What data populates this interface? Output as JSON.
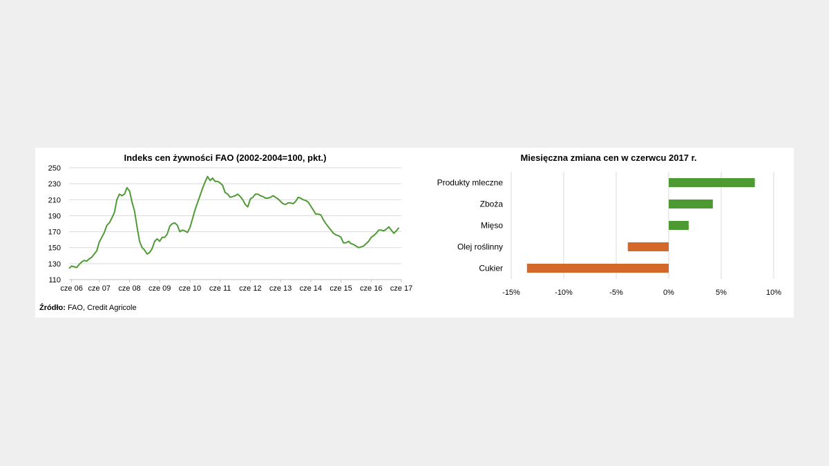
{
  "source": {
    "label": "Źródło:",
    "text": " FAO, Credit Agricole"
  },
  "chart_data": [
    {
      "type": "line",
      "title": "Indeks cen żywności FAO (2002-2004=100, pkt.)",
      "ylim": [
        110,
        250
      ],
      "yticks": [
        110,
        130,
        150,
        170,
        190,
        210,
        230,
        250
      ],
      "xlim": [
        0,
        132
      ],
      "grid": true,
      "xtick_labels": [
        {
          "x": 1,
          "label": "cze 06"
        },
        {
          "x": 12,
          "label": "cze 07"
        },
        {
          "x": 24,
          "label": "cze 08"
        },
        {
          "x": 36,
          "label": "cze 09"
        },
        {
          "x": 48,
          "label": "cze 10"
        },
        {
          "x": 60,
          "label": "cze 11"
        },
        {
          "x": 72,
          "label": "cze 12"
        },
        {
          "x": 84,
          "label": "cze 13"
        },
        {
          "x": 96,
          "label": "cze 14"
        },
        {
          "x": 108,
          "label": "cze 15"
        },
        {
          "x": 120,
          "label": "cze 16"
        },
        {
          "x": 132,
          "label": "cze 17"
        }
      ],
      "color": "#4e9a32",
      "values": [
        124,
        127,
        126,
        125,
        129,
        132,
        134,
        133,
        136,
        138,
        142,
        146,
        157,
        163,
        169,
        178,
        181,
        187,
        194,
        210,
        217,
        215,
        217,
        225,
        221,
        207,
        196,
        176,
        158,
        150,
        147,
        142,
        144,
        149,
        158,
        161,
        158,
        163,
        163,
        167,
        177,
        180,
        181,
        178,
        170,
        172,
        171,
        169,
        175,
        186,
        197,
        206,
        215,
        224,
        232,
        239,
        234,
        237,
        233,
        233,
        231,
        228,
        219,
        217,
        213,
        214,
        215,
        217,
        214,
        210,
        204,
        201,
        211,
        213,
        217,
        217,
        215,
        214,
        212,
        212,
        213,
        215,
        213,
        211,
        208,
        205,
        204,
        206,
        206,
        205,
        208,
        213,
        212,
        210,
        209,
        207,
        202,
        197,
        192,
        192,
        191,
        185,
        180,
        176,
        172,
        168,
        166,
        165,
        163,
        156,
        156,
        158,
        155,
        154,
        152,
        150,
        151,
        152,
        155,
        158,
        163,
        165,
        168,
        172,
        172,
        171,
        173,
        176,
        172,
        168,
        171,
        175
      ]
    },
    {
      "type": "bar",
      "orientation": "horizontal",
      "title": "Miesięczna zmiana cen w czerwcu 2017 r.",
      "categories": [
        "Produkty mleczne",
        "Zboża",
        "Mięso",
        "Olej roślinny",
        "Cukier"
      ],
      "values": [
        8.2,
        4.2,
        1.9,
        -3.9,
        -13.5
      ],
      "unit": "%",
      "xlim": [
        -15,
        10
      ],
      "xticks": [
        -15,
        -10,
        -5,
        0,
        5,
        10
      ],
      "xtick_labels": [
        "-15%",
        "-10%",
        "-5%",
        "0%",
        "5%",
        "10%"
      ],
      "positive_color": "#4e9a32",
      "negative_color": "#d2692b",
      "grid": true
    }
  ]
}
